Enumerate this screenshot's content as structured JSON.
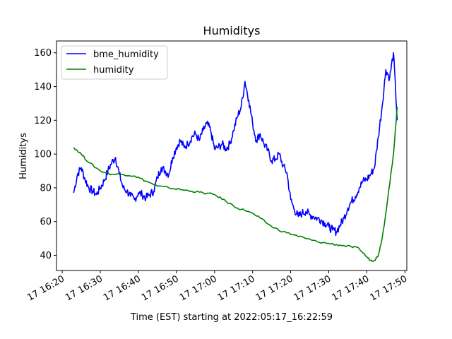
{
  "chart_data": {
    "type": "line",
    "title": "Humiditys",
    "xlabel": "Time (EST) starting at 2022:05:17_16:22:59",
    "ylabel": "Humiditys",
    "x_unit": "minutes (clock time, day 17)",
    "xlim": [
      "16:18:30",
      "17:50:30"
    ],
    "ylim": [
      31,
      167
    ],
    "x_ticks": [
      {
        "value": "16:20",
        "label": "17 16:20"
      },
      {
        "value": "16:30",
        "label": "17 16:30"
      },
      {
        "value": "16:40",
        "label": "17 16:40"
      },
      {
        "value": "16:50",
        "label": "17 16:50"
      },
      {
        "value": "17:00",
        "label": "17 17:00"
      },
      {
        "value": "17:10",
        "label": "17 17:10"
      },
      {
        "value": "17:20",
        "label": "17 17:20"
      },
      {
        "value": "17:30",
        "label": "17 17:30"
      },
      {
        "value": "17:40",
        "label": "17 17:40"
      },
      {
        "value": "17:50",
        "label": "17 17:50"
      }
    ],
    "y_ticks": [
      40,
      60,
      80,
      100,
      120,
      140,
      160
    ],
    "legend": "top-left",
    "grid": false,
    "series": [
      {
        "name": "bme_humidity",
        "color": "#0000ff",
        "x": [
          "16:23",
          "16:24",
          "16:25",
          "16:26",
          "16:27",
          "16:28",
          "16:29",
          "16:30",
          "16:31",
          "16:32",
          "16:33",
          "16:34",
          "16:35",
          "16:36",
          "16:37",
          "16:38",
          "16:39",
          "16:40",
          "16:41",
          "16:42",
          "16:43",
          "16:44",
          "16:45",
          "16:46",
          "16:47",
          "16:48",
          "16:49",
          "16:50",
          "16:51",
          "16:52",
          "16:53",
          "16:54",
          "16:55",
          "16:56",
          "16:57",
          "16:58",
          "16:59",
          "17:00",
          "17:01",
          "17:02",
          "17:03",
          "17:04",
          "17:05",
          "17:06",
          "17:07",
          "17:08",
          "17:09",
          "17:10",
          "17:11",
          "17:12",
          "17:13",
          "17:14",
          "17:15",
          "17:16",
          "17:17",
          "17:18",
          "17:19",
          "17:20",
          "17:21",
          "17:22",
          "17:23",
          "17:24",
          "17:25",
          "17:26",
          "17:27",
          "17:28",
          "17:29",
          "17:30",
          "17:31",
          "17:32",
          "17:33",
          "17:34",
          "17:35",
          "17:36",
          "17:37",
          "17:38",
          "17:39",
          "17:40",
          "17:41",
          "17:42",
          "17:43",
          "17:44",
          "17:45",
          "17:46",
          "17:47",
          "17:48"
        ],
        "values": [
          77,
          88,
          92,
          85,
          80,
          78,
          76,
          80,
          84,
          90,
          95,
          98,
          88,
          80,
          78,
          75,
          73,
          77,
          76,
          74,
          76,
          78,
          86,
          92,
          90,
          88,
          98,
          104,
          108,
          104,
          106,
          110,
          112,
          108,
          114,
          118,
          114,
          103,
          104,
          106,
          103,
          106,
          114,
          122,
          128,
          143,
          132,
          118,
          108,
          112,
          106,
          102,
          96,
          97,
          100,
          93,
          89,
          73,
          67,
          63,
          65,
          66,
          64,
          63,
          62,
          61,
          59,
          57,
          55,
          54,
          58,
          62,
          68,
          72,
          75,
          80,
          84,
          85,
          88,
          92,
          110,
          128,
          150,
          145,
          160,
          120
        ],
        "values_note_ignore": null
      },
      {
        "name": "humidity",
        "color": "#008000",
        "x": [
          "16:23",
          "16:25",
          "16:27",
          "16:30",
          "16:33",
          "16:36",
          "16:39",
          "16:42",
          "16:45",
          "16:48",
          "16:51",
          "16:54",
          "16:57",
          "17:00",
          "17:03",
          "17:06",
          "17:09",
          "17:12",
          "17:15",
          "17:18",
          "17:21",
          "17:24",
          "17:27",
          "17:30",
          "17:33",
          "17:36",
          "17:38",
          "17:40",
          "17:41",
          "17:42",
          "17:43",
          "17:44",
          "17:45",
          "17:46",
          "17:47",
          "17:48"
        ],
        "values": [
          104,
          100,
          95,
          90,
          88,
          88,
          87,
          84,
          81,
          80,
          79,
          78,
          77,
          76,
          72,
          68,
          66,
          62,
          57,
          54,
          52,
          50,
          48,
          47,
          46,
          45,
          44,
          39,
          37,
          37,
          40,
          50,
          65,
          82,
          100,
          128
        ]
      }
    ]
  }
}
